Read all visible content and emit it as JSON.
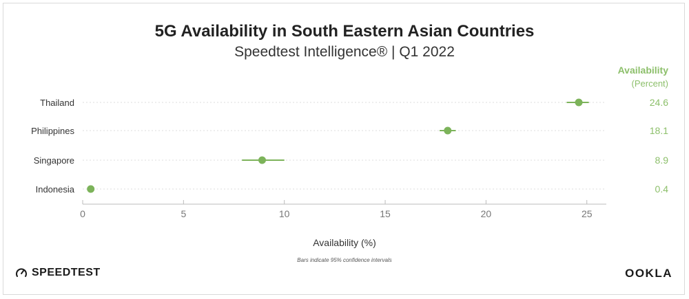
{
  "header": {
    "title": "5G Availability in South Eastern Asian Countries",
    "subtitle": "Speedtest Intelligence® | Q1 2022"
  },
  "footer": {
    "left_logo": "SPEEDTEST",
    "right_logo": "OOKLA"
  },
  "chart_data": {
    "type": "scatter",
    "title": "5G Availability in South Eastern Asian Countries",
    "subtitle": "Speedtest Intelligence® | Q1 2022",
    "xlabel": "Availability (%)",
    "note": "Bars indicate 95% confidence intervals",
    "value_column_header": [
      "Availability",
      "(Percent)"
    ],
    "categories": [
      "Thailand",
      "Philippines",
      "Singapore",
      "Indonesia"
    ],
    "values": [
      24.6,
      18.1,
      8.9,
      0.4
    ],
    "value_labels": [
      "24.6",
      "18.1",
      "8.9",
      "0.4"
    ],
    "ci_low": [
      24.0,
      17.7,
      7.9,
      0.3
    ],
    "ci_high": [
      25.1,
      18.5,
      10.0,
      0.5
    ],
    "xlim": [
      0,
      26
    ],
    "xticks": [
      0,
      5,
      10,
      15,
      20,
      25
    ],
    "grid": "horizontal dotted per category",
    "legend": "none",
    "colors": {
      "point": "#7cb35a",
      "value_text": "#8cbf6a",
      "category_text": "#333333",
      "axis": "#bbbbbb",
      "tick_text": "#777777"
    }
  }
}
